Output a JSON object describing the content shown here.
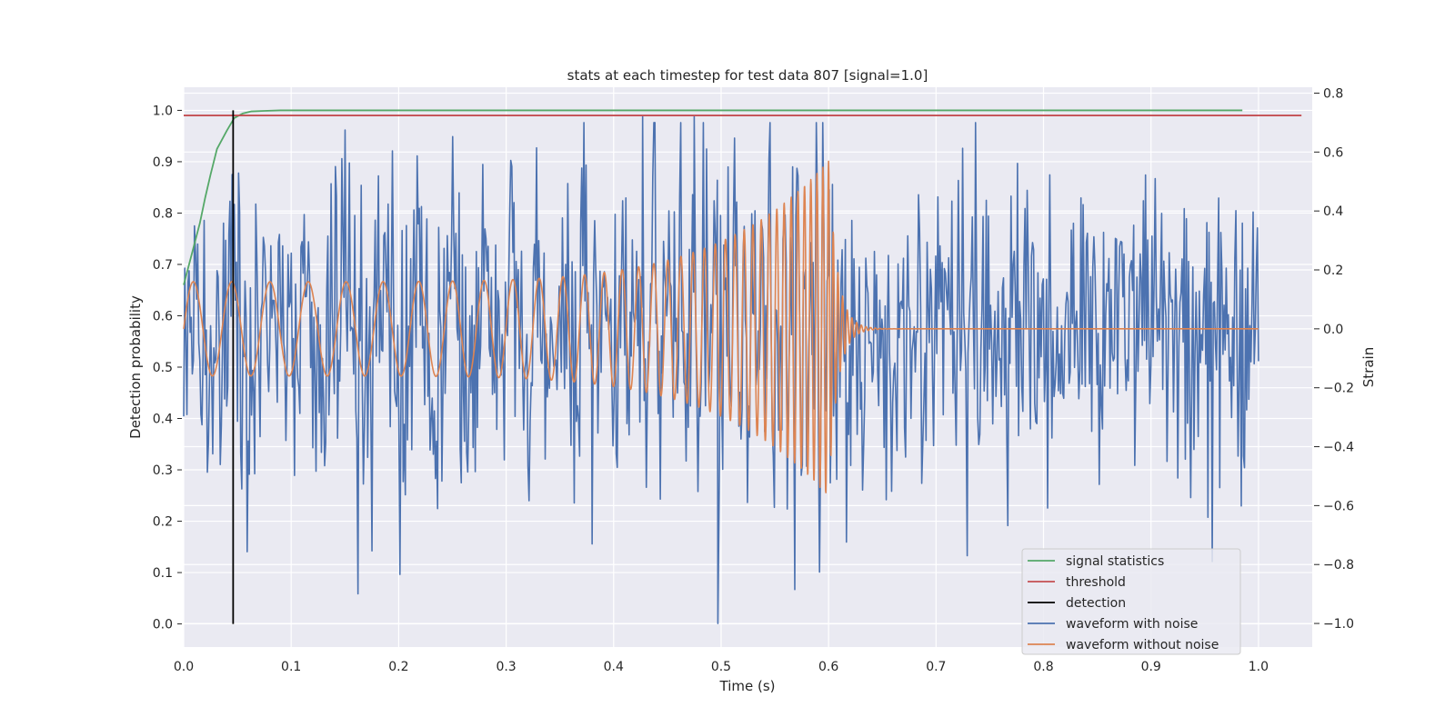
{
  "chart_data": {
    "type": "line",
    "title": "stats at each timestep for test data 807 [signal=1.0]",
    "xlabel": "Time (s)",
    "ylabel_left": "Detection probability",
    "ylabel_right": "Strain",
    "xlim": [
      0.0,
      1.05
    ],
    "ylim_left": [
      -0.045,
      1.045
    ],
    "ylim_right": [
      -1.08,
      0.82
    ],
    "x_ticks": [
      "0.0",
      "0.1",
      "0.2",
      "0.3",
      "0.4",
      "0.5",
      "0.6",
      "0.7",
      "0.8",
      "0.9",
      "1.0"
    ],
    "y_left_ticks": [
      "0.0",
      "0.1",
      "0.2",
      "0.3",
      "0.4",
      "0.5",
      "0.6",
      "0.7",
      "0.8",
      "0.9",
      "1.0"
    ],
    "y_right_ticks": [
      "−1.0",
      "−0.8",
      "−0.6",
      "−0.4",
      "−0.2",
      "0.0",
      "0.2",
      "0.4",
      "0.6",
      "0.8"
    ],
    "grid": true,
    "legend_position": "lower-right",
    "series": [
      {
        "name": "signal statistics",
        "color": "#55a868",
        "axis": "left",
        "x": [
          0.0,
          0.005,
          0.01,
          0.015,
          0.02,
          0.025,
          0.031,
          0.04,
          0.047,
          0.055,
          0.063,
          0.075,
          0.09,
          0.12,
          0.2,
          0.4,
          0.6,
          0.8,
          0.985
        ],
        "y": [
          0.66,
          0.7,
          0.74,
          0.78,
          0.83,
          0.875,
          0.925,
          0.96,
          0.985,
          0.994,
          0.998,
          0.999,
          1.0,
          1.0,
          1.0,
          1.0,
          1.0,
          1.0,
          1.0
        ]
      },
      {
        "name": "threshold",
        "color": "#c44e52",
        "axis": "left",
        "x": [
          0.0,
          1.04
        ],
        "y": [
          0.99,
          0.99
        ]
      },
      {
        "name": "detection",
        "color": "#000000",
        "axis": "left",
        "x": [
          0.046,
          0.046
        ],
        "y": [
          0.0,
          1.0
        ]
      },
      {
        "name": "waveform with noise",
        "color": "#4c72b0",
        "axis": "right",
        "x_range": [
          0.0,
          1.0
        ],
        "n_points": 1000,
        "noise_std": 0.26,
        "seed": 807,
        "notable_values": [
          [
            0.427,
            0.72
          ],
          [
            0.475,
            0.72
          ],
          [
            0.497,
            -1.0
          ],
          [
            0.729,
            -0.77
          ],
          [
            0.38,
            -0.73
          ]
        ]
      },
      {
        "name": "waveform without noise",
        "color": "#dd8452",
        "axis": "right",
        "x_range": [
          0.0,
          1.0
        ],
        "merger_time": 0.6,
        "amplitude_start": 0.16,
        "amplitude_peak": 0.57,
        "frequency_start_hz": 28,
        "frequency_end_hz": 190,
        "ringdown_decay_s": 0.008
      }
    ]
  }
}
